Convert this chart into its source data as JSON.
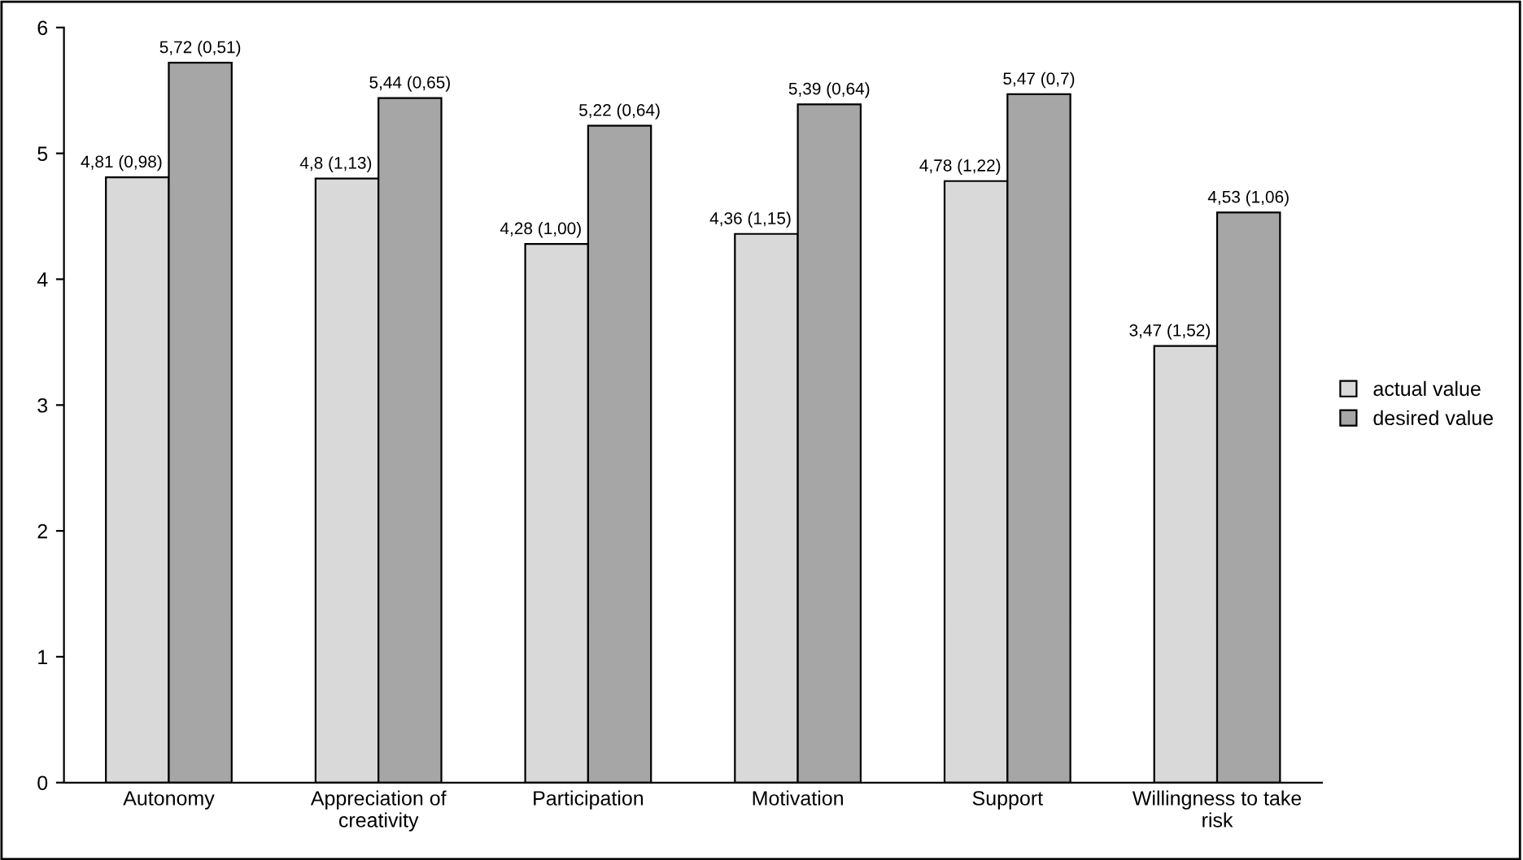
{
  "chart_data": {
    "type": "bar",
    "categories": [
      "Autonomy",
      "Appreciation of\ncreativity",
      "Participation",
      "Motivation",
      "Support",
      "Willingness to take\nrisk"
    ],
    "series": [
      {
        "name": "actual value",
        "color": "#d9d9d9",
        "values": [
          4.81,
          4.8,
          4.28,
          4.36,
          4.78,
          3.47
        ],
        "value_labels": [
          "4,81 (0,98)",
          "4,8 (1,13)",
          "4,28 (1,00)",
          "4,36 (1,15)",
          "4,78 (1,22)",
          "3,47 (1,52)"
        ]
      },
      {
        "name": "desired value",
        "color": "#a6a6a6",
        "values": [
          5.72,
          5.44,
          5.22,
          5.39,
          5.47,
          4.53
        ],
        "value_labels": [
          "5,72 (0,51)",
          "5,44 (0,65)",
          "5,22 (0,64)",
          "5,39 (0,64)",
          "5,47 (0,7)",
          "4,53 (1,06)"
        ]
      }
    ],
    "ylim": [
      0,
      6
    ],
    "yticks": [
      0,
      1,
      2,
      3,
      4,
      5,
      6
    ],
    "grid": false,
    "legend": "right"
  }
}
